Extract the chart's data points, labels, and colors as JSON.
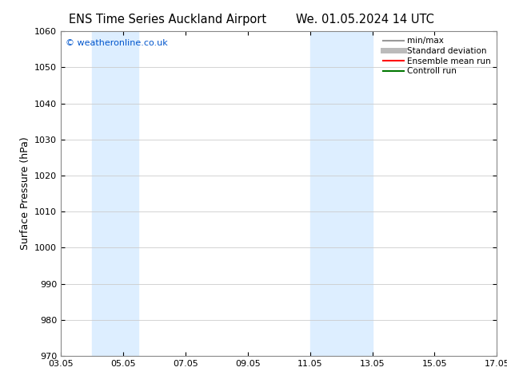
{
  "title_left": "ENS Time Series Auckland Airport",
  "title_right": "We. 01.05.2024 14 UTC",
  "ylabel": "Surface Pressure (hPa)",
  "ylim": [
    970,
    1060
  ],
  "yticks": [
    970,
    980,
    990,
    1000,
    1010,
    1020,
    1030,
    1040,
    1050,
    1060
  ],
  "xlim": [
    3.0,
    17.0
  ],
  "xtick_positions": [
    3,
    5,
    7,
    9,
    11,
    13,
    15,
    17
  ],
  "xtick_labels": [
    "03.05",
    "05.05",
    "07.05",
    "09.05",
    "11.05",
    "13.05",
    "15.05",
    "17.05"
  ],
  "shaded_bands": [
    {
      "x_start": 4.0,
      "x_end": 5.5,
      "color": "#ddeeff"
    },
    {
      "x_start": 11.0,
      "x_end": 13.0,
      "color": "#ddeeff"
    }
  ],
  "watermark": "© weatheronline.co.uk",
  "watermark_color": "#0055cc",
  "legend_items": [
    {
      "label": "min/max",
      "color": "#999999",
      "lw": 1.5
    },
    {
      "label": "Standard deviation",
      "color": "#bbbbbb",
      "lw": 5
    },
    {
      "label": "Ensemble mean run",
      "color": "#ff0000",
      "lw": 1.5
    },
    {
      "label": "Controll run",
      "color": "#007700",
      "lw": 1.5
    }
  ],
  "bg_color": "#ffffff",
  "grid_color": "#cccccc",
  "spine_color": "#888888",
  "title_fontsize": 10.5,
  "label_fontsize": 9,
  "tick_fontsize": 8,
  "legend_fontsize": 7.5
}
